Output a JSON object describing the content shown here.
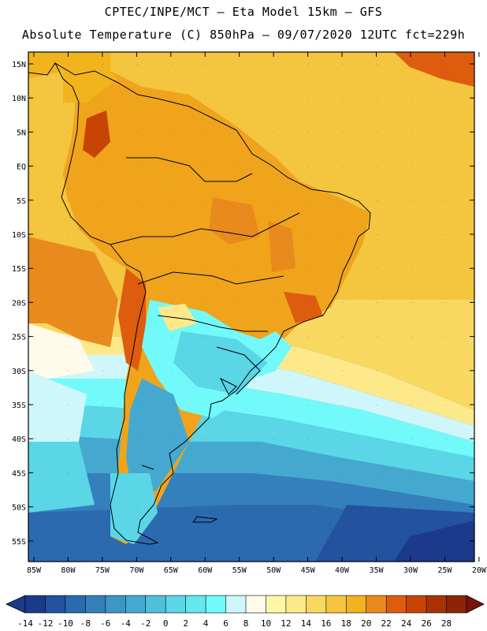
{
  "header": {
    "title_line1": "CPTEC/INPE/MCT –  Eta Model 15km – GFS",
    "title_line2": "Absolute Temperature (C) 850hPa – 09/07/2020 12UTC fct=229h"
  },
  "axes": {
    "lat_labels": [
      "15N",
      "10N",
      "5N",
      "EQ",
      "5S",
      "10S",
      "15S",
      "20S",
      "25S",
      "30S",
      "35S",
      "40S",
      "45S",
      "50S",
      "55S"
    ],
    "lon_labels": [
      "85W",
      "80W",
      "75W",
      "70W",
      "65W",
      "60W",
      "55W",
      "50W",
      "45W",
      "40W",
      "35W",
      "30W",
      "25W",
      "20W"
    ]
  },
  "colorbar": {
    "labels": [
      "-14",
      "-12",
      "-10",
      "-8",
      "-6",
      "-4",
      "-2",
      "0",
      "2",
      "4",
      "6",
      "8",
      "10",
      "12",
      "14",
      "16",
      "18",
      "20",
      "22",
      "24",
      "26",
      "28"
    ],
    "colors": [
      "#1c3a8c",
      "#23529e",
      "#2a6aae",
      "#3480bc",
      "#3c96c6",
      "#45a9cf",
      "#4fc0dc",
      "#5ad6e6",
      "#62e8ee",
      "#72fafa",
      "#cff6fa",
      "#fffaea",
      "#fff7a6",
      "#fde98a",
      "#f9d862",
      "#f4c53e",
      "#f1b41c",
      "#e98a1c",
      "#dd5c0e",
      "#c74404",
      "#aa3202",
      "#8c2408"
    ]
  },
  "map_colors": {
    "ocean_south": "#2c6ab0",
    "ocean_mid": "#3c96c6",
    "ocean_north": "#f1b41c",
    "land_tropics": "#efa41c",
    "andes_warm": "#dd5c0e",
    "patagonia": "#4fc0dc"
  }
}
